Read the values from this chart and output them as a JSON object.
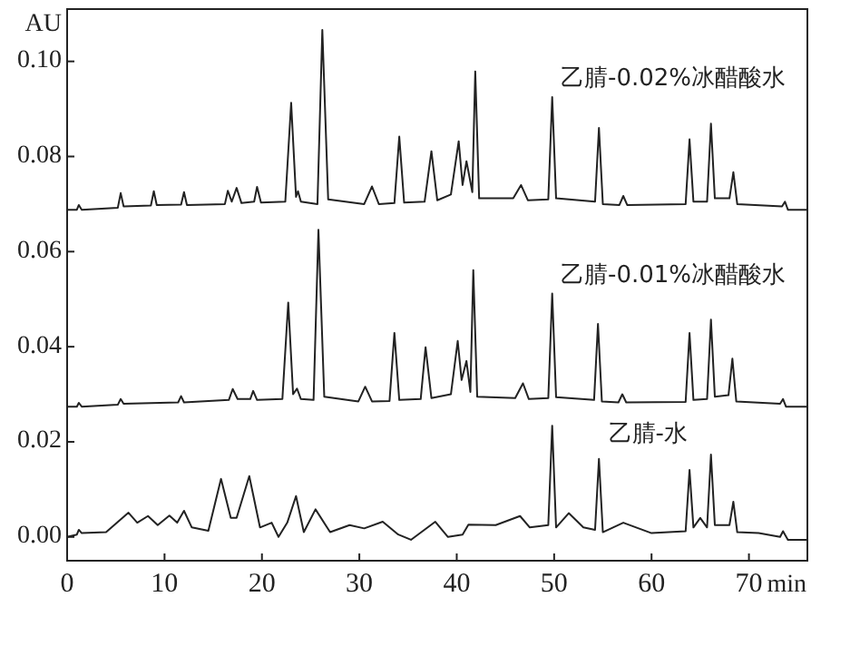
{
  "chart_data": {
    "type": "line",
    "xlabel": "min",
    "ylabel": "AU",
    "xlim": [
      0,
      76
    ],
    "ylim": [
      -0.005,
      0.111
    ],
    "xticks": [
      0,
      10,
      20,
      30,
      40,
      50,
      60,
      70
    ],
    "yticks": [
      {
        "value": 0,
        "label": "0.00"
      },
      {
        "value": 0.02,
        "label": "0.02"
      },
      {
        "value": 0.04,
        "label": "0.04"
      },
      {
        "value": 0.06,
        "label": "0.06"
      },
      {
        "value": 0.08,
        "label": "0.08"
      },
      {
        "value": 0.1,
        "label": "0.10"
      }
    ],
    "marker": "none",
    "line_style": "solid",
    "series": [
      {
        "name": "乙腈-0.02%冰醋酸水",
        "color": "#222222",
        "x": [
          0,
          1,
          1.2,
          1.5,
          5.2,
          5.5,
          5.8,
          8.6,
          8.9,
          9.2,
          11.7,
          12.0,
          12.3,
          16.2,
          16.5,
          16.9,
          17.4,
          17.9,
          19.2,
          19.5,
          19.9,
          22.4,
          23.0,
          23.5,
          23.7,
          24.0,
          25.7,
          26.2,
          26.8,
          30.5,
          31.3,
          32.0,
          33.6,
          34.1,
          34.6,
          36.7,
          37.4,
          38.0,
          39.4,
          40.2,
          40.6,
          41.0,
          41.6,
          41.9,
          42.3,
          45.8,
          46.6,
          47.3,
          49.4,
          49.8,
          50.2,
          54.2,
          54.6,
          55.0,
          56.7,
          57.1,
          57.5,
          63.5,
          63.9,
          64.3,
          65.7,
          66.1,
          66.5,
          68.0,
          68.4,
          68.8,
          73.4,
          73.7,
          74.0,
          76
        ],
        "values": [
          0.0688,
          0.0688,
          0.0698,
          0.0688,
          0.0692,
          0.0723,
          0.0695,
          0.0697,
          0.0727,
          0.0698,
          0.0699,
          0.0725,
          0.0698,
          0.07,
          0.0728,
          0.0705,
          0.0734,
          0.0702,
          0.0705,
          0.0736,
          0.0703,
          0.0705,
          0.0913,
          0.0715,
          0.0727,
          0.0705,
          0.07,
          0.1066,
          0.071,
          0.07,
          0.0737,
          0.07,
          0.0702,
          0.0842,
          0.0703,
          0.0705,
          0.0811,
          0.0708,
          0.072,
          0.0832,
          0.074,
          0.079,
          0.0725,
          0.0979,
          0.0712,
          0.0712,
          0.074,
          0.0708,
          0.071,
          0.0925,
          0.0712,
          0.0705,
          0.086,
          0.07,
          0.0698,
          0.0717,
          0.0698,
          0.07,
          0.0836,
          0.0705,
          0.0705,
          0.0869,
          0.0712,
          0.0712,
          0.0767,
          0.07,
          0.0695,
          0.0705,
          0.0688,
          0.0688
        ]
      },
      {
        "name": "乙腈-0.01%冰醋酸水",
        "color": "#222222",
        "x": [
          0,
          1,
          1.2,
          1.5,
          5.2,
          5.5,
          5.8,
          11.4,
          11.7,
          12.0,
          16.6,
          17.0,
          17.5,
          18.8,
          19.1,
          19.5,
          22.1,
          22.7,
          23.2,
          23.6,
          24.0,
          25.3,
          25.8,
          26.4,
          29.9,
          30.6,
          31.3,
          33.1,
          33.6,
          34.1,
          36.3,
          36.8,
          37.4,
          39.4,
          40.1,
          40.5,
          41.0,
          41.4,
          41.7,
          42.1,
          46.0,
          46.8,
          47.4,
          49.4,
          49.8,
          50.2,
          54.1,
          54.5,
          54.9,
          56.6,
          57.0,
          57.4,
          63.5,
          63.9,
          64.3,
          65.7,
          66.1,
          66.5,
          67.9,
          68.3,
          68.7,
          73.2,
          73.5,
          73.8,
          76
        ],
        "values": [
          0.0274,
          0.0274,
          0.0282,
          0.0274,
          0.0278,
          0.029,
          0.028,
          0.0283,
          0.0296,
          0.0283,
          0.0288,
          0.0311,
          0.029,
          0.029,
          0.0307,
          0.0288,
          0.029,
          0.0493,
          0.03,
          0.0312,
          0.029,
          0.0288,
          0.0646,
          0.0295,
          0.0285,
          0.0316,
          0.0285,
          0.0286,
          0.0429,
          0.0288,
          0.029,
          0.0399,
          0.0292,
          0.03,
          0.0412,
          0.033,
          0.037,
          0.0305,
          0.0561,
          0.0295,
          0.0292,
          0.0323,
          0.029,
          0.0292,
          0.0512,
          0.0294,
          0.0288,
          0.0448,
          0.0285,
          0.0283,
          0.03,
          0.0283,
          0.0284,
          0.0429,
          0.0288,
          0.029,
          0.0457,
          0.0295,
          0.0298,
          0.0375,
          0.0285,
          0.028,
          0.029,
          0.0274,
          0.0274
        ]
      },
      {
        "name": "乙腈-水",
        "color": "#222222",
        "x": [
          0,
          1,
          1.2,
          1.5,
          4.0,
          6.3,
          7.2,
          8.3,
          9.3,
          10.5,
          11.3,
          12.0,
          12.8,
          14.5,
          15.8,
          16.8,
          17.4,
          18.7,
          19.8,
          21.0,
          21.7,
          22.6,
          23.5,
          24.3,
          25.5,
          27.0,
          29.0,
          30.5,
          32.4,
          34.0,
          35.3,
          37.8,
          39.1,
          40.6,
          41.2,
          44.0,
          46.5,
          47.5,
          49.4,
          49.8,
          50.2,
          51.5,
          53.0,
          54.2,
          54.6,
          55.0,
          57.1,
          60.0,
          63.5,
          63.9,
          64.3,
          65.0,
          65.7,
          66.1,
          66.5,
          68.0,
          68.4,
          68.8,
          71.0,
          73.2,
          73.5,
          74.0,
          76
        ],
        "values": [
          0.0,
          0.0005,
          0.0015,
          0.0008,
          0.001,
          0.0051,
          0.003,
          0.0044,
          0.0025,
          0.0045,
          0.003,
          0.0055,
          0.002,
          0.0013,
          0.0122,
          0.004,
          0.004,
          0.0128,
          0.002,
          0.003,
          0.0,
          0.003,
          0.0086,
          0.001,
          0.0058,
          0.001,
          0.0025,
          0.0018,
          0.0032,
          0.0005,
          -0.0006,
          0.0032,
          0.0,
          0.0005,
          0.0026,
          0.0025,
          0.0044,
          0.002,
          0.0025,
          0.0234,
          0.002,
          0.005,
          0.002,
          0.0015,
          0.0164,
          0.001,
          0.003,
          0.0008,
          0.0012,
          0.0141,
          0.002,
          0.004,
          0.002,
          0.0173,
          0.0025,
          0.0025,
          0.0074,
          0.001,
          0.0008,
          0.0,
          0.0012,
          -0.0006,
          -0.0006
        ]
      }
    ]
  }
}
